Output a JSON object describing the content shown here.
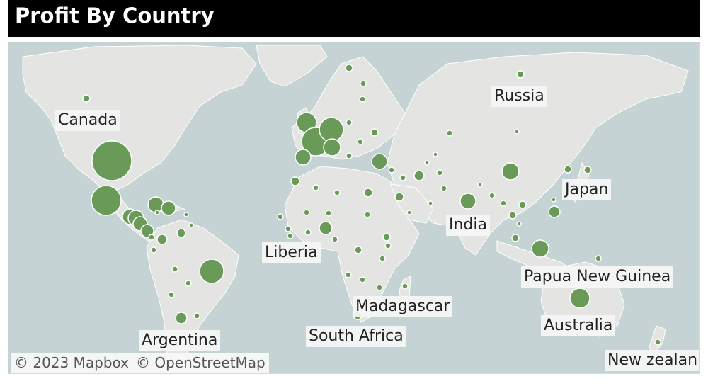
{
  "header": {
    "title": "Profit By Country"
  },
  "map": {
    "colors": {
      "ocean": "#c5d3d4",
      "land": "#e4e4e3",
      "border": "#ffffff",
      "marker": "#6a9a58",
      "marker_stroke": "#ffffff"
    },
    "attribution": {
      "mapbox": "© 2023 Mapbox",
      "osm": "© OpenStreetMap"
    },
    "labels": {
      "canada": "Canada",
      "russia": "Russia",
      "japan": "Japan",
      "india": "India",
      "liberia": "Liberia",
      "papua_new_guinea": "Papua New Guinea",
      "madagascar": "Madagascar",
      "australia": "Australia",
      "south_africa": "South Africa",
      "argentina": "Argentina",
      "new_zealand": "New zealan"
    }
  }
}
